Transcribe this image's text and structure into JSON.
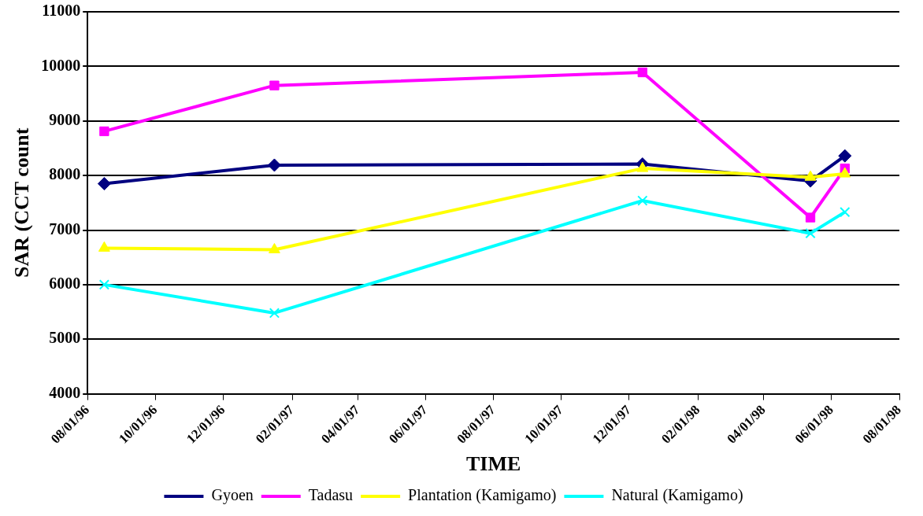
{
  "chart_data": {
    "type": "line",
    "xlabel": "TIME",
    "ylabel": "SAR (CCT count",
    "ylim": [
      4000,
      11000
    ],
    "yticks": [
      4000,
      5000,
      6000,
      7000,
      8000,
      9000,
      10000,
      11000
    ],
    "xlim": [
      "1996-08-01",
      "1998-08-01"
    ],
    "xticks": [
      {
        "value": "1996-08-01",
        "label": "08/01/96"
      },
      {
        "value": "1996-10-01",
        "label": "10/01/96"
      },
      {
        "value": "1996-12-01",
        "label": "12/01/96"
      },
      {
        "value": "1997-02-01",
        "label": "02/01/97"
      },
      {
        "value": "1997-04-01",
        "label": "04/01/97"
      },
      {
        "value": "1997-06-01",
        "label": "06/01/97"
      },
      {
        "value": "1997-08-01",
        "label": "08/01/97"
      },
      {
        "value": "1997-10-01",
        "label": "10/01/97"
      },
      {
        "value": "1997-12-01",
        "label": "12/01/97"
      },
      {
        "value": "1998-02-01",
        "label": "02/01/98"
      },
      {
        "value": "1998-04-01",
        "label": "04/01/98"
      },
      {
        "value": "1998-06-01",
        "label": "06/01/98"
      },
      {
        "value": "1998-08-01",
        "label": "08/01/98"
      }
    ],
    "x": [
      "1996-08-16",
      "1997-01-16",
      "1997-12-13",
      "1998-05-13",
      "1998-06-13"
    ],
    "grid": "y",
    "legend": "bottom",
    "line_style": "solid",
    "series": [
      {
        "name": "Gyoen",
        "color": "#000080",
        "marker": "diamond",
        "values": [
          7850,
          8190,
          8210,
          7900,
          8360
        ]
      },
      {
        "name": "Tadasu",
        "color": "#ff00ff",
        "marker": "square",
        "values": [
          8810,
          9650,
          9890,
          7230,
          8130
        ]
      },
      {
        "name": "Plantation (Kamigamo)",
        "color": "#ffff00",
        "marker": "triangle",
        "values": [
          6670,
          6640,
          8130,
          7970,
          8030
        ]
      },
      {
        "name": "Natural (Kamigamo)",
        "color": "#00ffff",
        "marker": "cross",
        "values": [
          6000,
          5480,
          7540,
          6940,
          7330
        ]
      }
    ]
  }
}
